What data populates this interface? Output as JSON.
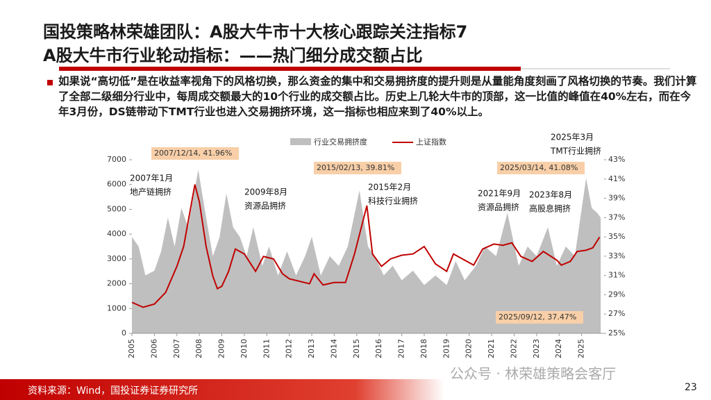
{
  "header": {
    "title_line1": "国投策略林荣雄团队：A股大牛市十大核心跟踪关注指标7",
    "title_line2": "A股大牛市行业轮动指标：——热门细分成交额占比"
  },
  "bullet": "如果说“高切低”是在收益率视角下的风格切换，那么资金的集中和交易拥挤度的提升则是从量能角度刻画了风格切换的节奏。我们计算了全部二级细分行业中，每周成交额最大的10个行业的成交额占比。历史上几轮大牛市的顶部，这一比值的峰值在40%左右，而在今年3月份，DS链带动下TMT行业也进入交易拥挤环境，这一指标也相应来到了40%以上。",
  "chart_data": {
    "type": "combo",
    "series": [
      {
        "name": "行业交易拥挤度",
        "color": "#bfbfbf",
        "type": "area",
        "axis": "y2",
        "x": [
          2005.0,
          2005.3,
          2005.6,
          2006.0,
          2006.3,
          2006.6,
          2006.9,
          2007.2,
          2007.5,
          2007.95,
          2008.3,
          2008.6,
          2008.9,
          2009.2,
          2009.5,
          2009.8,
          2010.1,
          2010.4,
          2010.8,
          2011.1,
          2011.5,
          2011.9,
          2012.3,
          2012.7,
          2013.0,
          2013.4,
          2013.8,
          2014.2,
          2014.6,
          2015.12,
          2015.5,
          2015.8,
          2016.2,
          2016.6,
          2017.0,
          2017.5,
          2018.0,
          2018.5,
          2019.0,
          2019.4,
          2019.8,
          2020.3,
          2020.7,
          2021.2,
          2021.7,
          2022.2,
          2022.6,
          2023.0,
          2023.5,
          2023.9,
          2024.3,
          2024.7,
          2025.2,
          2025.45,
          2025.7,
          2025.85
        ],
        "values": [
          35,
          34,
          31,
          31.5,
          33.5,
          37,
          34,
          38,
          36,
          41.96,
          37,
          33,
          35,
          39.5,
          36,
          35,
          33,
          36,
          32,
          34,
          31,
          33.5,
          31,
          33,
          35,
          31,
          33,
          32,
          34,
          39.81,
          34,
          33,
          31,
          32,
          30.5,
          31.5,
          30,
          31,
          30,
          32.5,
          30.5,
          32,
          34,
          33,
          37.5,
          32,
          34,
          33,
          36,
          32,
          34,
          33,
          41.08,
          38,
          37.47,
          37
        ]
      },
      {
        "name": "上证指数",
        "color": "#c00000",
        "type": "line",
        "x": [
          2005.0,
          2005.5,
          2006.0,
          2006.5,
          2007.0,
          2007.3,
          2007.6,
          2007.8,
          2008.0,
          2008.3,
          2008.6,
          2008.8,
          2009.0,
          2009.3,
          2009.6,
          2010.0,
          2010.5,
          2010.85,
          2011.3,
          2011.7,
          2012.0,
          2012.9,
          2013.1,
          2013.5,
          2014.0,
          2014.5,
          2014.9,
          2015.45,
          2015.7,
          2016.1,
          2016.5,
          2017.0,
          2017.5,
          2018.0,
          2018.5,
          2019.0,
          2019.3,
          2019.8,
          2020.2,
          2020.6,
          2021.1,
          2021.5,
          2021.9,
          2022.3,
          2022.8,
          2023.3,
          2023.9,
          2024.1,
          2024.5,
          2024.8,
          2025.2,
          2025.5,
          2025.8
        ],
        "values": [
          1250,
          1050,
          1180,
          1650,
          2700,
          3500,
          5000,
          6000,
          5300,
          3500,
          2300,
          1800,
          1900,
          2500,
          3400,
          3200,
          2500,
          3100,
          3000,
          2400,
          2200,
          2000,
          2400,
          1950,
          2050,
          2050,
          3200,
          5150,
          3200,
          2700,
          3000,
          3150,
          3200,
          3500,
          2800,
          2500,
          3200,
          2950,
          2750,
          3400,
          3600,
          3550,
          3650,
          3100,
          2900,
          3300,
          2950,
          2750,
          2900,
          3300,
          3350,
          3450,
          3880
        ]
      }
    ],
    "xlim": [
      2005,
      2026
    ],
    "xticks": [
      2005,
      2006,
      2007,
      2008,
      2009,
      2010,
      2011,
      2012,
      2013,
      2014,
      2015,
      2016,
      2017,
      2018,
      2019,
      2020,
      2021,
      2022,
      2023,
      2024,
      2025
    ],
    "ylim": [
      0,
      7000
    ],
    "yticks": [
      0,
      1000,
      2000,
      3000,
      4000,
      5000,
      6000,
      7000
    ],
    "y2lim": [
      25,
      43
    ],
    "y2ticks": [
      {
        "value": 25,
        "label": "25%"
      },
      {
        "value": 27,
        "label": "27%"
      },
      {
        "value": 29,
        "label": "29%"
      },
      {
        "value": 31,
        "label": "31%"
      },
      {
        "value": 33,
        "label": "33%"
      },
      {
        "value": 35,
        "label": "35%"
      },
      {
        "value": 37,
        "label": "37%"
      },
      {
        "value": 39,
        "label": "39%"
      },
      {
        "value": 41,
        "label": "41%"
      },
      {
        "value": 43,
        "label": "43%"
      }
    ],
    "annotations": [
      {
        "text": "2007/12/14, 41.96%"
      },
      {
        "text": "2015/02/13, 39.81%"
      },
      {
        "text": "2025/03/14, 41.08%"
      },
      {
        "text": "2025/09/12, 37.47%"
      }
    ],
    "callouts": [
      {
        "lines": [
          "2007年1月",
          "地产链拥挤"
        ]
      },
      {
        "lines": [
          "2009年8月",
          "资源品拥挤"
        ]
      },
      {
        "lines": [
          "2015年2月",
          "科技行业拥挤"
        ]
      },
      {
        "lines": [
          "2021年9月",
          "资源品拥挤"
        ]
      },
      {
        "lines": [
          "2023年8月",
          "高股息拥挤"
        ]
      },
      {
        "lines": [
          "2025年3月",
          "TMT行业拥挤"
        ]
      }
    ]
  },
  "source": "资料来源：Wind，国投证券证券研究所",
  "watermark": "公众号 · 林荣雄策略会客厅",
  "page_number": "23"
}
